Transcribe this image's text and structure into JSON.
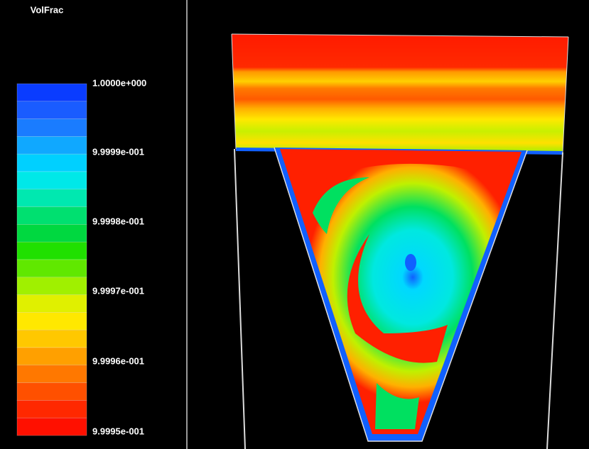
{
  "legend": {
    "title": "VolFrac",
    "labels": [
      "1.0000e+000",
      "9.9999e-001",
      "9.9998e-001",
      "9.9997e-001",
      "9.9996e-001",
      "9.9995e-001"
    ]
  }
}
